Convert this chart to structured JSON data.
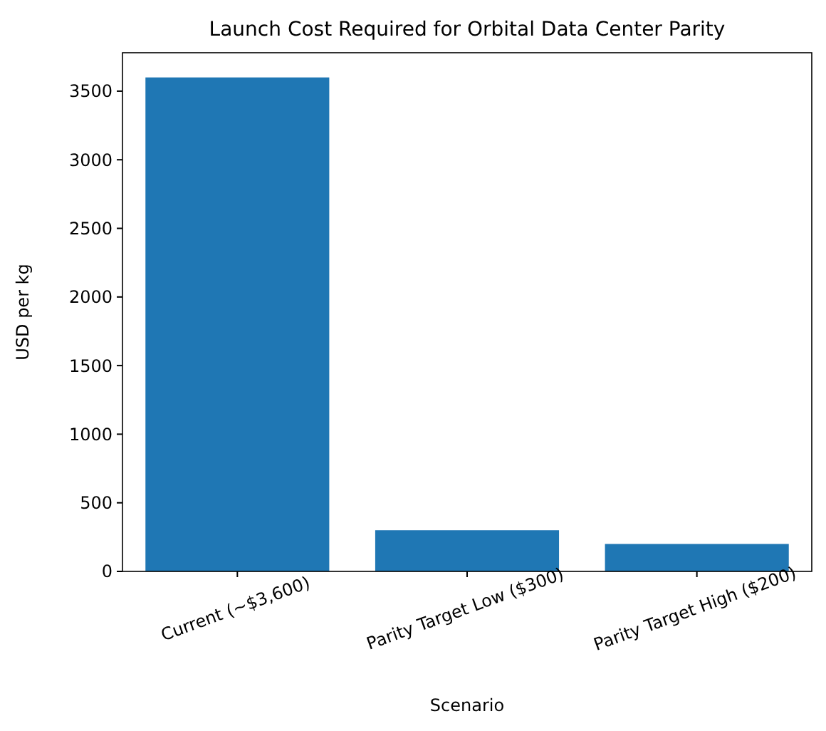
{
  "chart_data": {
    "type": "bar",
    "title": "Launch Cost Required for Orbital Data Center Parity",
    "xlabel": "Scenario",
    "ylabel": "USD per kg",
    "categories": [
      "Current (~$3,600)",
      "Parity Target Low ($300)",
      "Parity Target High ($200)"
    ],
    "values": [
      3600,
      300,
      200
    ],
    "color": "#1f77b4",
    "ylim": [
      0,
      3780
    ],
    "yticks": [
      0,
      500,
      1000,
      1500,
      2000,
      2500,
      3000,
      3500
    ],
    "grid": false
  }
}
